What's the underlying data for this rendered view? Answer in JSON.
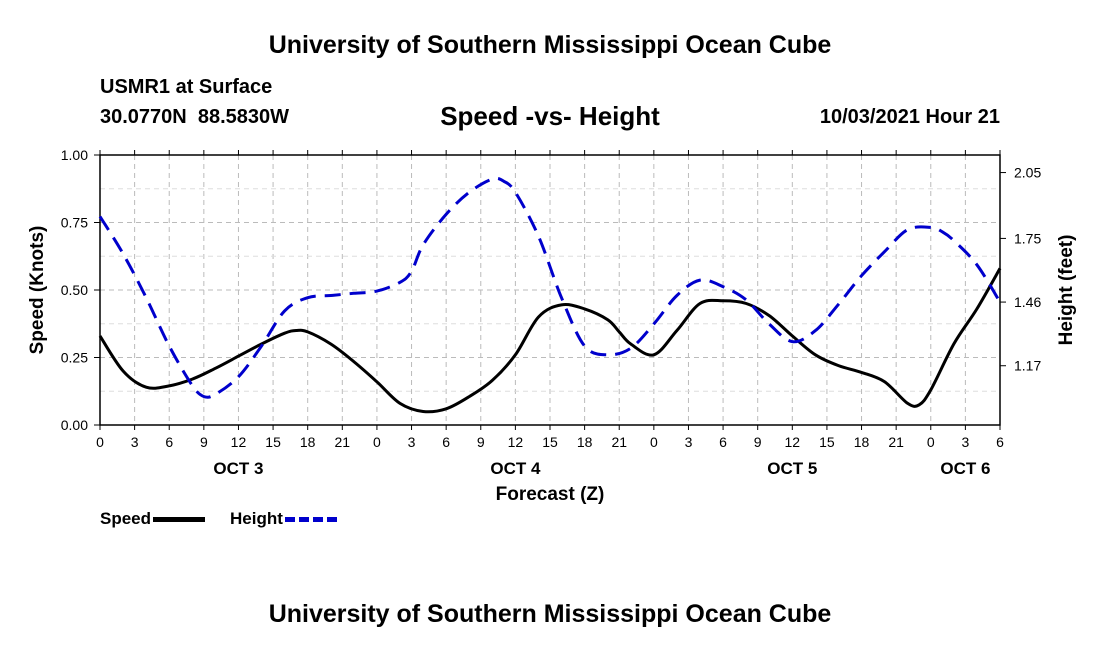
{
  "header": {
    "title": "University of Southern Mississippi Ocean Cube",
    "station": "USMR1 at Surface",
    "coordinates": "30.0770N  88.5830W",
    "plot_title": "Speed -vs- Height",
    "datetime": "10/03/2021 Hour 21"
  },
  "footer": {
    "title": "University of Southern Mississippi Ocean Cube"
  },
  "legend": {
    "speed_label": "Speed",
    "height_label": "Height"
  },
  "colors": {
    "speed": "#000000",
    "height": "#0000cc",
    "grid": "#bbbbbb"
  },
  "chart_data": {
    "type": "line",
    "xlabel": "Forecast (Z)",
    "ylabel_left": "Speed (Knots)",
    "ylabel_right": "Height (feet)",
    "x_range_hours": [
      0,
      78
    ],
    "x_tick_hours": [
      0,
      3,
      6,
      9,
      12,
      15,
      18,
      21,
      24,
      27,
      30,
      33,
      36,
      39,
      42,
      45,
      48,
      51,
      54,
      57,
      60,
      63,
      66,
      69,
      72,
      75,
      78
    ],
    "x_tick_labels": [
      "0",
      "3",
      "6",
      "9",
      "12",
      "15",
      "18",
      "21",
      "0",
      "3",
      "6",
      "9",
      "12",
      "15",
      "18",
      "21",
      "0",
      "3",
      "6",
      "9",
      "12",
      "15",
      "18",
      "21",
      "0",
      "3",
      "6"
    ],
    "day_labels": [
      {
        "label": "OCT 3",
        "hour": 12
      },
      {
        "label": "OCT 4",
        "hour": 36
      },
      {
        "label": "OCT 5",
        "hour": 60
      },
      {
        "label": "OCT 6",
        "hour": 75
      }
    ],
    "y_left": {
      "range": [
        0,
        1.0
      ],
      "ticks": [
        0,
        0.25,
        0.5,
        0.75,
        1.0
      ],
      "tick_labels": [
        "0.00",
        "0.25",
        "0.50",
        "0.75",
        "1.00"
      ]
    },
    "y_right": {
      "range": [
        0.9,
        2.13
      ],
      "ticks": [
        1.17,
        1.46,
        1.75,
        2.05
      ],
      "tick_labels": [
        "1.17",
        "1.46",
        "1.75",
        "2.05"
      ]
    },
    "series": [
      {
        "name": "Speed",
        "axis": "left",
        "style": "solid",
        "x": [
          0,
          2,
          4,
          6,
          8,
          10,
          12,
          14,
          16,
          17,
          18,
          20,
          22,
          24,
          26,
          28,
          30,
          32,
          34,
          36,
          38,
          40,
          42,
          44,
          45,
          46,
          48,
          50,
          52,
          54,
          56,
          58,
          60,
          62,
          64,
          66,
          68,
          70,
          71,
          72,
          74,
          76,
          78
        ],
        "values": [
          0.33,
          0.2,
          0.14,
          0.145,
          0.17,
          0.21,
          0.255,
          0.3,
          0.34,
          0.35,
          0.345,
          0.3,
          0.235,
          0.16,
          0.08,
          0.05,
          0.06,
          0.105,
          0.165,
          0.26,
          0.4,
          0.445,
          0.43,
          0.39,
          0.345,
          0.3,
          0.26,
          0.35,
          0.45,
          0.46,
          0.45,
          0.405,
          0.33,
          0.26,
          0.22,
          0.195,
          0.16,
          0.08,
          0.075,
          0.13,
          0.3,
          0.43,
          0.58
        ]
      },
      {
        "name": "Height",
        "axis": "right",
        "style": "dashed",
        "x": [
          0,
          2,
          4,
          6,
          8,
          9,
          10,
          12,
          14,
          16,
          18,
          20,
          22,
          24,
          26,
          27,
          28,
          30,
          32,
          34,
          35,
          36,
          38,
          40,
          42,
          44,
          46,
          48,
          50,
          52,
          54,
          56,
          58,
          60,
          62,
          64,
          66,
          68,
          70,
          72,
          73,
          74,
          76,
          78
        ],
        "values": [
          1.85,
          1.68,
          1.48,
          1.26,
          1.08,
          1.03,
          1.04,
          1.12,
          1.26,
          1.42,
          1.48,
          1.49,
          1.5,
          1.51,
          1.55,
          1.6,
          1.72,
          1.86,
          1.96,
          2.02,
          2.01,
          1.96,
          1.76,
          1.48,
          1.26,
          1.22,
          1.25,
          1.36,
          1.49,
          1.56,
          1.53,
          1.47,
          1.36,
          1.28,
          1.33,
          1.45,
          1.58,
          1.69,
          1.79,
          1.8,
          1.78,
          1.74,
          1.63,
          1.46
        ]
      }
    ]
  }
}
